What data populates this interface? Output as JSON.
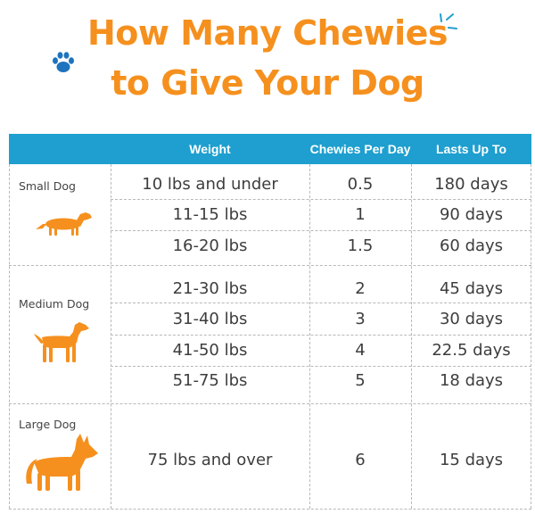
{
  "title": {
    "line1": "How Many Chewies",
    "line2": "to Give Your Dog"
  },
  "colors": {
    "title": "#f5901e",
    "header_bg": "#1e9fcf",
    "header_text": "#ffffff",
    "dog_icon": "#f5901e",
    "paw_icon": "#1e73be",
    "cell_text": "#3d3d3d"
  },
  "icons": {
    "paw": "paw-print-icon",
    "spark": "sparkle-icon",
    "small_dog": "dachshund-icon",
    "medium_dog": "medium-dog-icon",
    "large_dog": "large-dog-icon"
  },
  "table": {
    "headers": [
      "Weight",
      "Chewies Per Day",
      "Lasts Up To"
    ],
    "groups": [
      {
        "label": "Small Dog",
        "rows": [
          {
            "weight": "10 lbs and under",
            "chewies": "0.5",
            "lasts": "180 days"
          },
          {
            "weight": "11-15 lbs",
            "chewies": "1",
            "lasts": "90 days"
          },
          {
            "weight": "16-20 lbs",
            "chewies": "1.5",
            "lasts": "60 days"
          }
        ]
      },
      {
        "label": "Medium Dog",
        "rows": [
          {
            "weight": "21-30 lbs",
            "chewies": "2",
            "lasts": "45 days"
          },
          {
            "weight": "31-40 lbs",
            "chewies": "3",
            "lasts": "30 days"
          },
          {
            "weight": "41-50 lbs",
            "chewies": "4",
            "lasts": "22.5 days"
          },
          {
            "weight": "51-75 lbs",
            "chewies": "5",
            "lasts": "18 days"
          }
        ]
      },
      {
        "label": "Large Dog",
        "rows": [
          {
            "weight": "75 lbs and over",
            "chewies": "6",
            "lasts": "15 days"
          }
        ]
      }
    ]
  }
}
